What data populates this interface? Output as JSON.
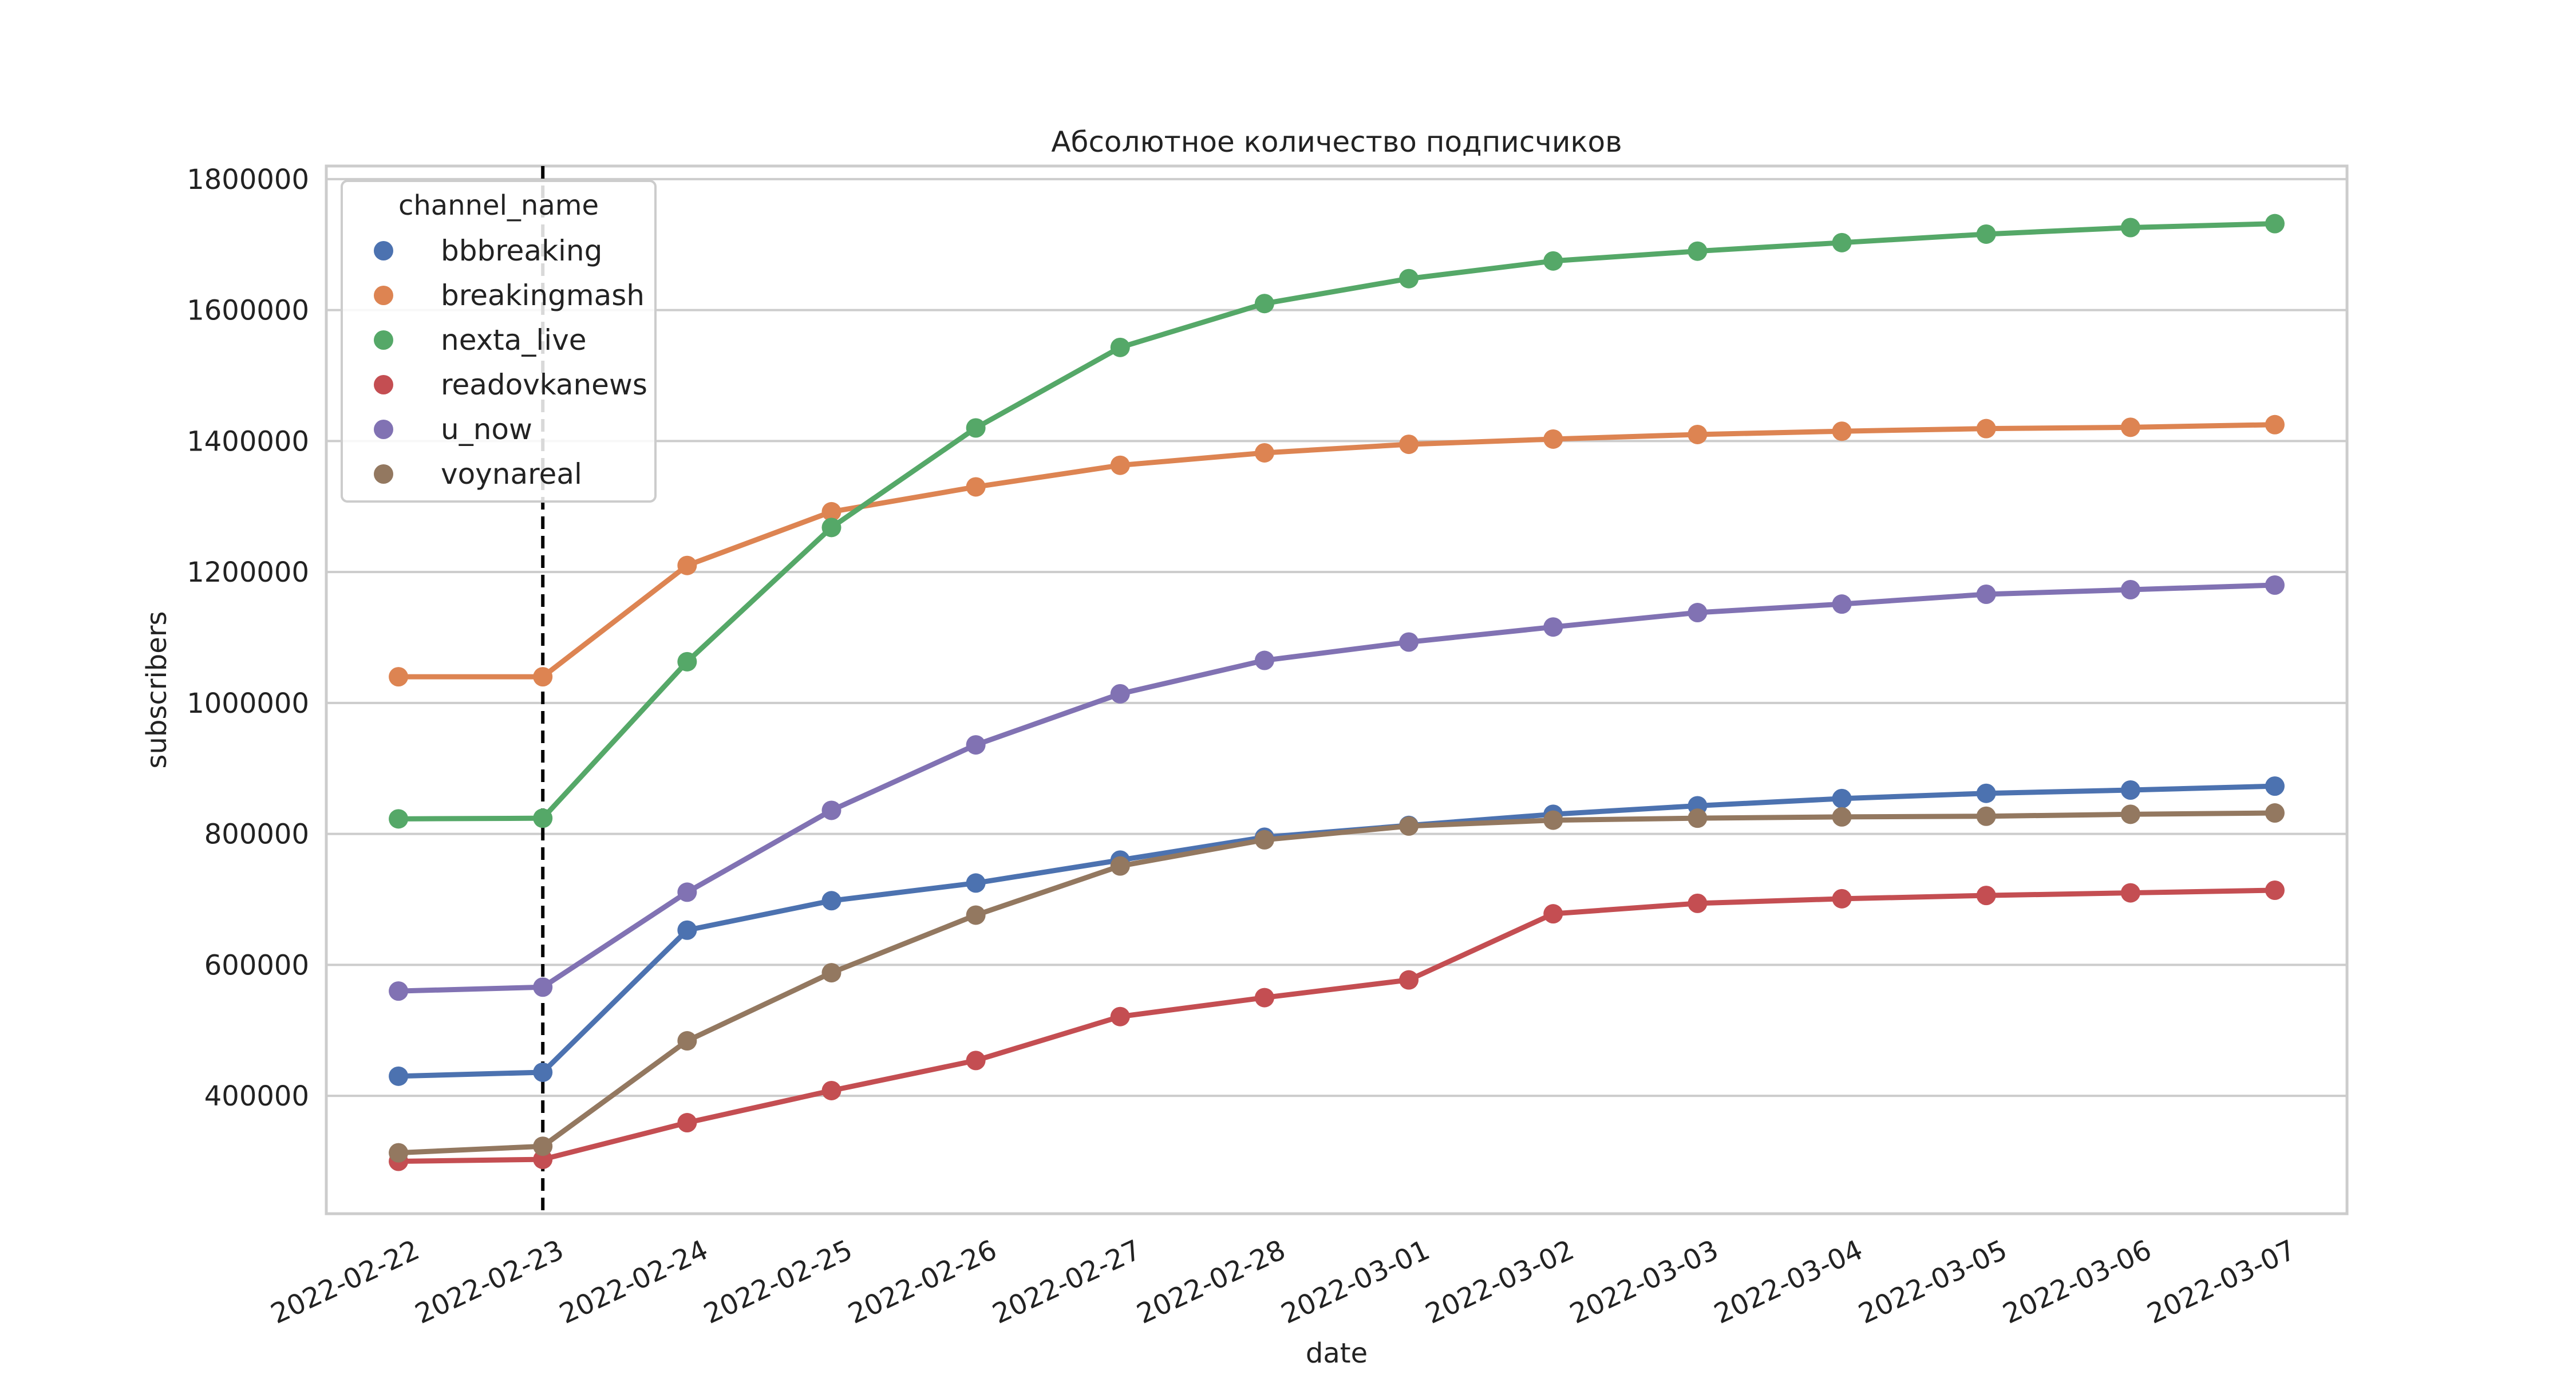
{
  "chart_data": {
    "type": "line",
    "title": "Абсолютное количество подписчиков",
    "xlabel": "date",
    "ylabel": "subscribers",
    "ylim": [
      220000,
      1820000
    ],
    "yticks": [
      400000,
      600000,
      800000,
      1000000,
      1200000,
      1400000,
      1600000,
      1800000
    ],
    "grid": "horizontal",
    "legend": {
      "title": "channel_name",
      "position": "upper-left"
    },
    "marker_line": {
      "category": "2022-02-23",
      "style": "dashed",
      "color": "#000000"
    },
    "categories": [
      "2022-02-22",
      "2022-02-23",
      "2022-02-24",
      "2022-02-25",
      "2022-02-26",
      "2022-02-27",
      "2022-02-28",
      "2022-03-01",
      "2022-03-02",
      "2022-03-03",
      "2022-03-04",
      "2022-03-05",
      "2022-03-06",
      "2022-03-07"
    ],
    "series": [
      {
        "name": "bbbreaking",
        "color": "#4c72b0",
        "values": [
          430000,
          436000,
          653000,
          698000,
          725000,
          760000,
          795000,
          813000,
          830000,
          843000,
          854000,
          862000,
          867000,
          873000
        ]
      },
      {
        "name": "breakingmash",
        "color": "#dd8452",
        "values": [
          1040000,
          1040000,
          1210000,
          1292000,
          1330000,
          1363000,
          1382000,
          1395000,
          1403000,
          1410000,
          1415000,
          1419000,
          1421000,
          1425000
        ]
      },
      {
        "name": "nexta_live",
        "color": "#55a868",
        "values": [
          823000,
          824000,
          1063000,
          1268000,
          1420000,
          1543000,
          1610000,
          1648000,
          1675000,
          1690000,
          1703000,
          1716000,
          1726000,
          1732000
        ]
      },
      {
        "name": "readovkanews",
        "color": "#c44e52",
        "values": [
          300000,
          303000,
          359000,
          408000,
          454000,
          521000,
          550000,
          577000,
          678000,
          694000,
          701000,
          706000,
          710000,
          714000
        ]
      },
      {
        "name": "u_now",
        "color": "#8172b3",
        "values": [
          560000,
          566000,
          711000,
          836000,
          936000,
          1014000,
          1065000,
          1093000,
          1116000,
          1138000,
          1151000,
          1166000,
          1173000,
          1180000
        ]
      },
      {
        "name": "voynareal",
        "color": "#937860",
        "values": [
          313000,
          323000,
          484000,
          588000,
          676000,
          751000,
          791000,
          812000,
          821000,
          824000,
          826000,
          827000,
          830000,
          832000
        ]
      }
    ]
  }
}
